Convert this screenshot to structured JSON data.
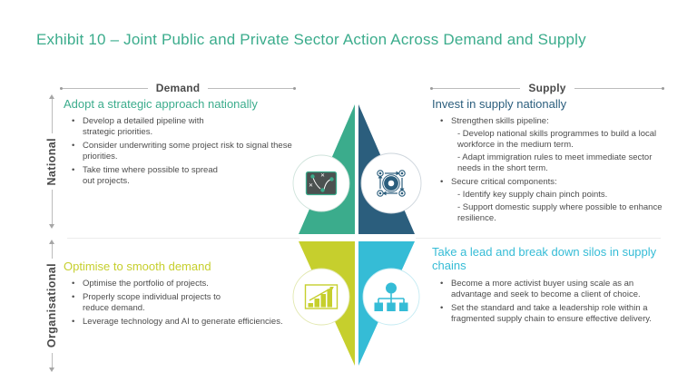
{
  "title": "Exhibit 10 – Joint Public and Private Sector Action Across Demand and Supply",
  "axes": {
    "demand": "Demand",
    "supply": "Supply",
    "national": "National",
    "organisational": "Organisational"
  },
  "quadrants": {
    "demand_national": {
      "heading": "Adopt a strategic approach nationally",
      "bullets": [
        {
          "text": "Develop a detailed pipeline with\nstrategic priorities."
        },
        {
          "text": "Consider underwriting some project risk to signal these\npriorities."
        },
        {
          "text": "Take time where possible to spread\nout projects."
        }
      ],
      "icon": "strategy-board-icon"
    },
    "supply_national": {
      "heading": "Invest in supply nationally",
      "bullets": [
        {
          "text": "Strengthen skills pipeline:",
          "sub": [
            "- Develop national skills programmes to build a local\nworkforce in the medium term.",
            "- Adapt immigration rules to meet immediate sector\nneeds in the short term."
          ]
        },
        {
          "text": "Secure critical components:",
          "sub": [
            "- Identify key supply chain pinch points.",
            "- Support domestic supply where possible to enhance\nresilience."
          ]
        }
      ],
      "icon": "scale-components-icon"
    },
    "demand_organisational": {
      "heading": "Optimise to smooth demand",
      "bullets": [
        {
          "text": "Optimise the portfolio of projects."
        },
        {
          "text": "Properly scope individual projects to\nreduce demand."
        },
        {
          "text": "Leverage technology and AI to generate efficiencies."
        }
      ],
      "icon": "growth-chart-icon"
    },
    "supply_organisational": {
      "heading": "Take a lead and break down silos in supply\nchains",
      "bullets": [
        {
          "text": "Become a more activist buyer using scale as an\nadvantage and seek to become a client of choice."
        },
        {
          "text": "Set the standard and take a leadership role within a\nfragmented supply chain to ensure effective delivery."
        }
      ],
      "icon": "org-hierarchy-icon"
    }
  },
  "colors": {
    "teal": "#3BAC8C",
    "blue": "#2B5E7D",
    "lime": "#C6CF2D",
    "cyan": "#35BCD6",
    "ink": "#4d4d4d",
    "label": "#4a4a4a",
    "line": "#bcbcbc",
    "divider": "#ececec"
  }
}
